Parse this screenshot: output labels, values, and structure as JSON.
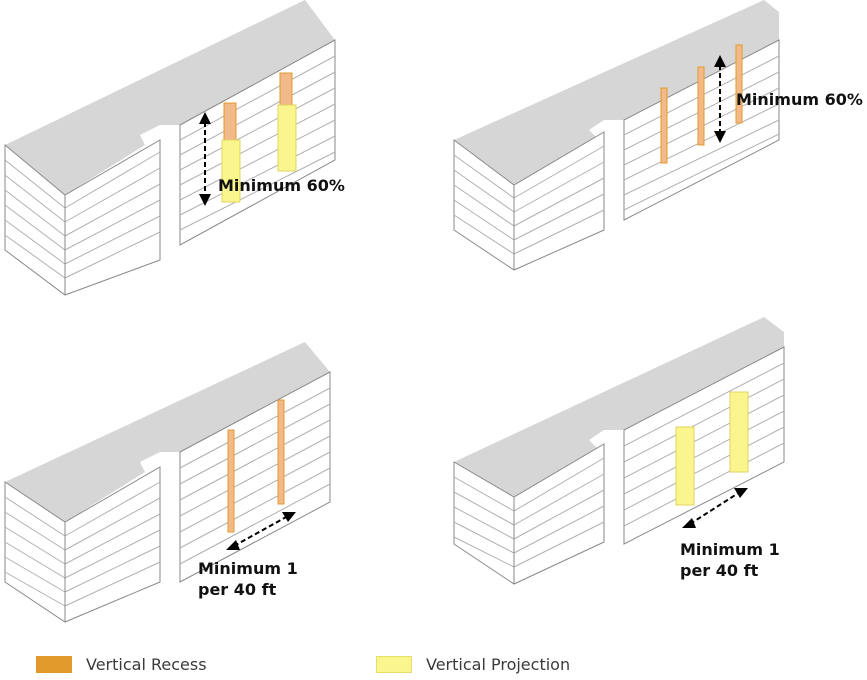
{
  "panels": [
    {
      "label_lines": [
        "Minimum 60%"
      ]
    },
    {
      "label_lines": [
        "Minimum 60%"
      ]
    },
    {
      "label_lines": [
        "Minimum 1",
        "per 40 ft"
      ]
    },
    {
      "label_lines": [
        "Minimum 1",
        "per 40 ft"
      ]
    }
  ],
  "legend": {
    "recess_label": "Vertical Recess",
    "projection_label": "Vertical Projection"
  },
  "colors": {
    "recess": "#e39a2c",
    "recess_fill": "#f2b98a",
    "projection": "#fbf58e",
    "roof": "#d9d9d9",
    "wall_line": "#9a9a9a"
  }
}
